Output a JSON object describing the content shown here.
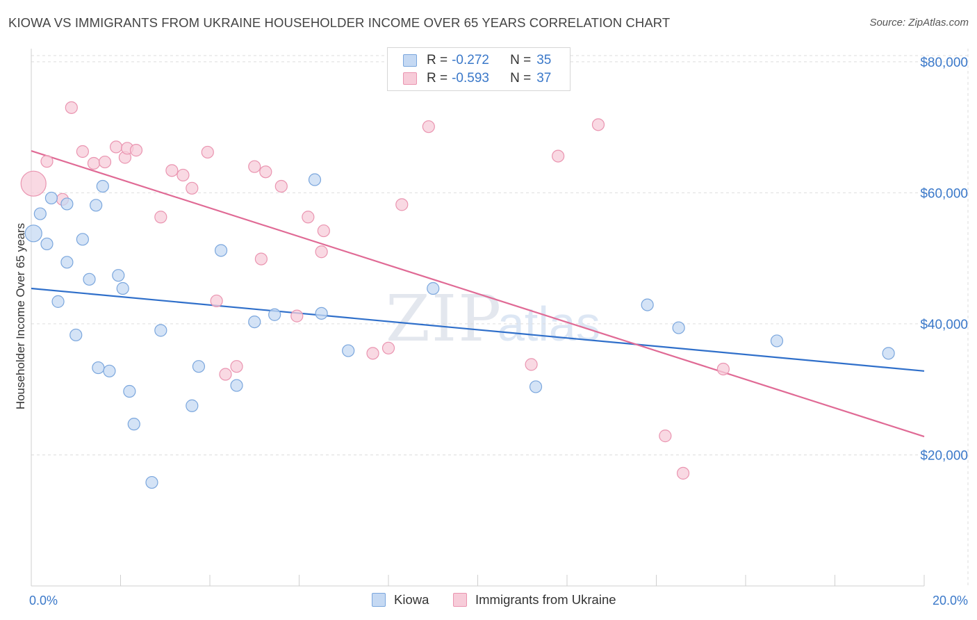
{
  "title": "KIOWA VS IMMIGRANTS FROM UKRAINE HOUSEHOLDER INCOME OVER 65 YEARS CORRELATION CHART",
  "source": "Source: ZipAtlas.com",
  "watermark": {
    "zip": "ZIP",
    "atlas": "atlas"
  },
  "legend": {
    "rows": [
      {
        "r_label": "R =",
        "r_value": "-0.272",
        "n_label": "N =",
        "n_value": "35"
      },
      {
        "r_label": "R =",
        "r_value": "-0.593",
        "n_label": "N =",
        "n_value": "37"
      }
    ]
  },
  "bottom_legend": {
    "series1": "Kiowa",
    "series2": "Immigrants from Ukraine"
  },
  "colors": {
    "kiowa_fill": "#c5d9f3",
    "kiowa_stroke": "#7aa6dd",
    "kiowa_line": "#2f6fca",
    "ukraine_fill": "#f7ccd9",
    "ukraine_stroke": "#ea94b0",
    "ukraine_line": "#e06a95",
    "tick_text": "#3a78c9",
    "grid": "#dddddd"
  },
  "chart_data": {
    "type": "scatter",
    "ylabel": "Householder Income Over 65 years",
    "x_tick_labels": [
      "0.0%",
      "20.0%"
    ],
    "y_tick_labels": [
      "$20,000",
      "$40,000",
      "$60,000",
      "$80,000"
    ],
    "y_ticks": [
      20000,
      40000,
      60000,
      80000
    ],
    "xlim": [
      0,
      20
    ],
    "ylim": [
      0,
      82000
    ],
    "grid": true,
    "series": [
      {
        "name": "Kiowa",
        "trend": [
          [
            0,
            45400
          ],
          [
            20,
            32800
          ]
        ],
        "points": [
          [
            0.05,
            53800
          ],
          [
            0.2,
            56800
          ],
          [
            0.35,
            52200
          ],
          [
            0.45,
            59200
          ],
          [
            0.6,
            43400
          ],
          [
            0.8,
            49400
          ],
          [
            0.8,
            58300
          ],
          [
            1.0,
            38300
          ],
          [
            1.15,
            52900
          ],
          [
            1.3,
            46800
          ],
          [
            1.45,
            58100
          ],
          [
            1.5,
            33300
          ],
          [
            1.6,
            61000
          ],
          [
            1.75,
            32800
          ],
          [
            1.95,
            47400
          ],
          [
            2.05,
            45400
          ],
          [
            2.2,
            29700
          ],
          [
            2.3,
            24700
          ],
          [
            2.7,
            15800
          ],
          [
            2.9,
            39000
          ],
          [
            3.6,
            27500
          ],
          [
            3.75,
            33500
          ],
          [
            4.25,
            51200
          ],
          [
            4.6,
            30600
          ],
          [
            5.0,
            40300
          ],
          [
            5.45,
            41400
          ],
          [
            6.35,
            62000
          ],
          [
            6.5,
            41600
          ],
          [
            7.1,
            35900
          ],
          [
            9.0,
            45400
          ],
          [
            11.3,
            30400
          ],
          [
            13.8,
            42900
          ],
          [
            14.5,
            39400
          ],
          [
            16.7,
            37400
          ],
          [
            19.2,
            35500
          ]
        ]
      },
      {
        "name": "Immigrants from Ukraine",
        "trend": [
          [
            0,
            66400
          ],
          [
            20,
            22800
          ]
        ],
        "points": [
          [
            0.05,
            61400
          ],
          [
            0.35,
            64800
          ],
          [
            0.7,
            59000
          ],
          [
            0.9,
            73000
          ],
          [
            1.15,
            66300
          ],
          [
            1.4,
            64500
          ],
          [
            1.65,
            64700
          ],
          [
            1.9,
            67000
          ],
          [
            2.1,
            65400
          ],
          [
            2.15,
            66800
          ],
          [
            2.35,
            66500
          ],
          [
            2.9,
            56300
          ],
          [
            3.15,
            63400
          ],
          [
            3.4,
            62700
          ],
          [
            3.6,
            60700
          ],
          [
            3.95,
            66200
          ],
          [
            4.15,
            43500
          ],
          [
            4.35,
            32300
          ],
          [
            4.6,
            33500
          ],
          [
            5.0,
            64000
          ],
          [
            5.15,
            49900
          ],
          [
            5.25,
            63200
          ],
          [
            5.6,
            61000
          ],
          [
            5.95,
            41200
          ],
          [
            6.2,
            56300
          ],
          [
            6.5,
            51000
          ],
          [
            6.55,
            54200
          ],
          [
            7.65,
            35500
          ],
          [
            8.0,
            36300
          ],
          [
            8.3,
            58200
          ],
          [
            8.9,
            70100
          ],
          [
            11.2,
            33800
          ],
          [
            11.8,
            65600
          ],
          [
            12.7,
            70400
          ],
          [
            14.2,
            22900
          ],
          [
            14.6,
            17200
          ],
          [
            15.5,
            33100
          ]
        ]
      }
    ]
  }
}
